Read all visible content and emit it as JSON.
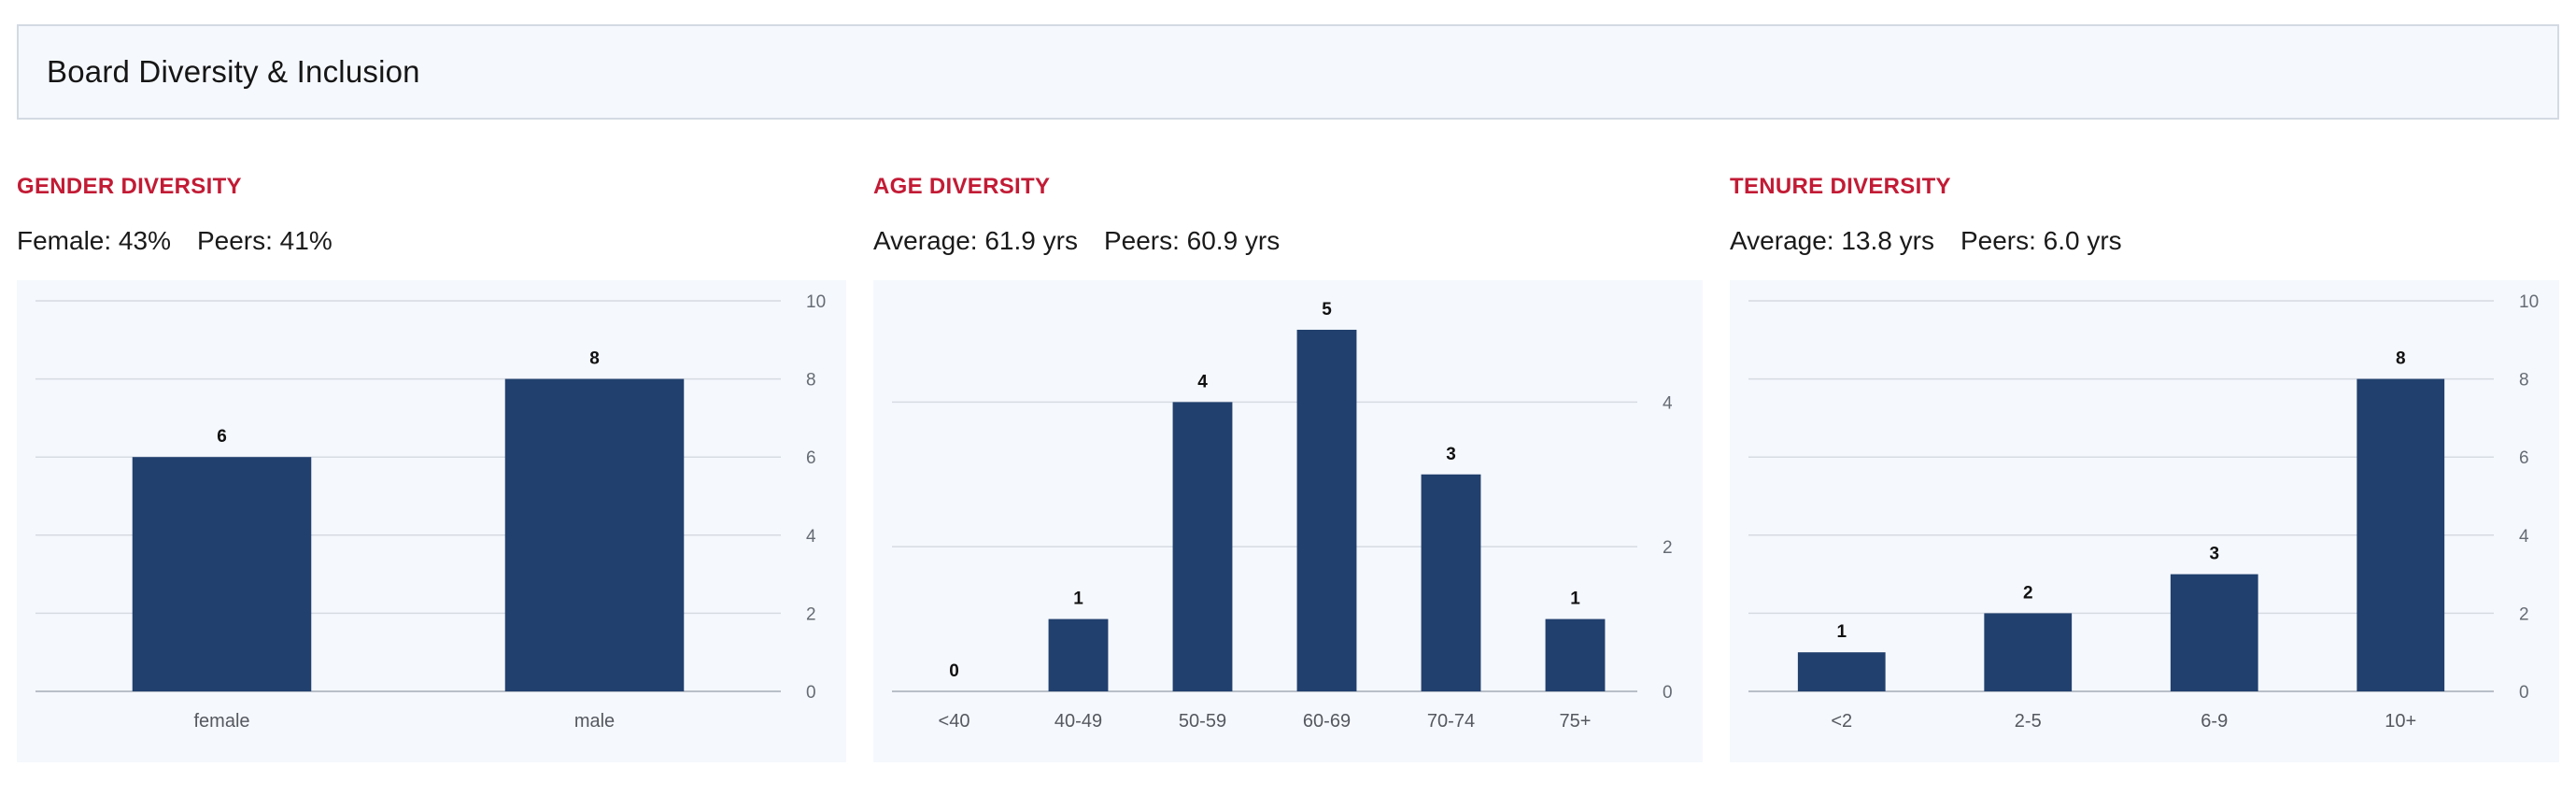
{
  "header": {
    "title": "Board Diversity & Inclusion"
  },
  "panels": [
    {
      "title": "GENDER DIVERSITY",
      "stat1": "Female: 43%",
      "stat2": "Peers: 41%"
    },
    {
      "title": "AGE DIVERSITY",
      "stat1": "Average: 61.9 yrs",
      "stat2": "Peers: 60.9 yrs"
    },
    {
      "title": "TENURE DIVERSITY",
      "stat1": "Average: 13.8 yrs",
      "stat2": "Peers: 6.0 yrs"
    }
  ],
  "colors": {
    "bar": "#21406e",
    "accent": "#c21b35",
    "panel_bg": "#f5f8fd"
  },
  "chart_data": [
    {
      "type": "bar",
      "title": "GENDER DIVERSITY",
      "categories": [
        "female",
        "male"
      ],
      "values": [
        6,
        8
      ],
      "ylim": [
        0,
        10
      ],
      "yticks": [
        0,
        2,
        4,
        6,
        8,
        10
      ],
      "y_axis_side": "right",
      "grid": true
    },
    {
      "type": "bar",
      "title": "AGE DIVERSITY",
      "categories": [
        "<40",
        "40-49",
        "50-59",
        "60-69",
        "70-74",
        "75+"
      ],
      "values": [
        0,
        1,
        4,
        5,
        3,
        1
      ],
      "ylim": [
        0,
        5.4
      ],
      "yticks": [
        0,
        2,
        4
      ],
      "y_axis_side": "right",
      "grid": true
    },
    {
      "type": "bar",
      "title": "TENURE DIVERSITY",
      "categories": [
        "<2",
        "2-5",
        "6-9",
        "10+"
      ],
      "values": [
        1,
        2,
        3,
        8
      ],
      "ylim": [
        0,
        10
      ],
      "yticks": [
        0,
        2,
        4,
        6,
        8,
        10
      ],
      "y_axis_side": "right",
      "grid": true
    }
  ]
}
